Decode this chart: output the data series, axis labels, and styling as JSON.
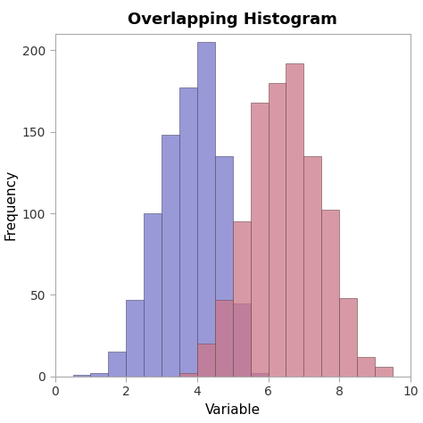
{
  "title": "Overlapping Histogram",
  "xlabel": "Variable",
  "ylabel": "Frequency",
  "xlim": [
    0,
    10
  ],
  "ylim": [
    0,
    210
  ],
  "xticks": [
    0,
    2,
    4,
    6,
    8,
    10
  ],
  "yticks": [
    0,
    50,
    100,
    150,
    200
  ],
  "blue_color": "#7777CC",
  "red_color": "#CC7788",
  "alpha": 0.75,
  "bin_width": 0.5,
  "blue_bins": [
    0.5,
    1.0,
    1.5,
    2.0,
    2.5,
    3.0,
    3.5,
    4.0,
    4.5,
    5.0,
    5.5
  ],
  "blue_heights": [
    1,
    2,
    15,
    47,
    100,
    148,
    177,
    205,
    135,
    45,
    2
  ],
  "red_bins": [
    3.5,
    4.0,
    4.5,
    5.0,
    5.5,
    6.0,
    6.5,
    7.0,
    7.5,
    8.0,
    8.5,
    9.0
  ],
  "red_heights": [
    2,
    20,
    47,
    95,
    168,
    180,
    192,
    135,
    102,
    48,
    12,
    6
  ],
  "plot_bg": "#FFFFFF",
  "box_color": "#AAAAAA",
  "title_fontsize": 13,
  "label_fontsize": 11,
  "tick_fontsize": 10
}
